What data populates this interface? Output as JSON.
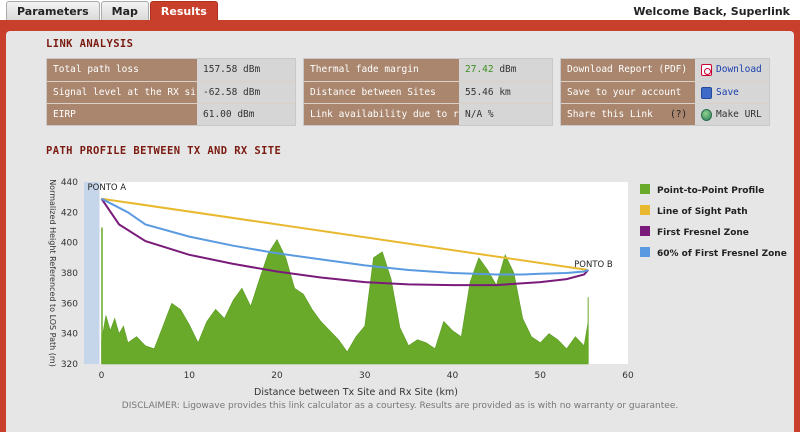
{
  "tabs": [
    {
      "label": "Parameters",
      "active": false
    },
    {
      "label": "Map",
      "active": false
    },
    {
      "label": "Results",
      "active": true
    }
  ],
  "welcome": "Welcome Back, Superlink",
  "link_analysis": {
    "title": "LINK ANALYSIS",
    "col1": [
      {
        "label": "Total path loss",
        "value": "157.58 dBm"
      },
      {
        "label": "Signal level at the RX site",
        "value": "-62.58 dBm"
      },
      {
        "label": "EIRP",
        "value": "61.00 dBm"
      }
    ],
    "col2": [
      {
        "label": "Thermal fade margin",
        "value_num": "27.42",
        "value_unit": " dBm"
      },
      {
        "label": "Distance between Sites",
        "value": "55.46 km"
      },
      {
        "label": "Link availability due to rain",
        "value": "N/A %"
      }
    ],
    "col3": [
      {
        "label": "Download Report (PDF)",
        "action": "Download",
        "icon": "pdf-icon"
      },
      {
        "label": "Save to your account",
        "action": "Save",
        "icon": "disk-icon"
      },
      {
        "label": "Share this Link",
        "help": "(?)",
        "action": "Make URL",
        "icon": "globe-icon"
      }
    ],
    "colors": {
      "label_bg": "#a9866d",
      "value_bg": "#d6d6d6",
      "green": "#3a8f1a",
      "link": "#1a3fae"
    }
  },
  "profile_title": "PATH PROFILE BETWEEN TX AND RX SITE",
  "chart_data": {
    "type": "area",
    "xlabel": "Distance between Tx Site and Rx Site (km)",
    "ylabel": "Normalized Height Referenced to LOS Path (m)",
    "xlim": [
      -2,
      60
    ],
    "ylim": [
      320,
      440
    ],
    "x_ticks": [
      0,
      10,
      20,
      30,
      40,
      50,
      60
    ],
    "y_ticks": [
      320,
      340,
      360,
      380,
      400,
      420,
      440
    ],
    "annotations": [
      {
        "text": "PONTO A",
        "x": 0,
        "y": 428
      },
      {
        "text": "PONTO B",
        "x": 55.46,
        "y": 382
      }
    ],
    "legend_position": "right",
    "series": [
      {
        "name": "Point-to-Point Profile",
        "color": "#6aaa2a",
        "kind": "area",
        "x": [
          0,
          0.5,
          1,
          1.5,
          2,
          2.5,
          3,
          4,
          5,
          6,
          7,
          8,
          9,
          10,
          11,
          12,
          13,
          14,
          15,
          16,
          17,
          18,
          19,
          20,
          21,
          22,
          23,
          24,
          25,
          26,
          27,
          28,
          29,
          30,
          31,
          32,
          33,
          34,
          35,
          36,
          37,
          38,
          39,
          40,
          41,
          42,
          43,
          44,
          45,
          46,
          47,
          48,
          49,
          50,
          51,
          52,
          53,
          54,
          55,
          55.46
        ],
        "y": [
          335,
          352,
          342,
          350,
          340,
          345,
          334,
          338,
          332,
          330,
          345,
          360,
          356,
          346,
          334,
          348,
          356,
          350,
          362,
          370,
          358,
          376,
          393,
          402,
          390,
          370,
          366,
          356,
          348,
          342,
          336,
          328,
          338,
          345,
          390,
          394,
          376,
          344,
          332,
          336,
          334,
          330,
          348,
          342,
          338,
          374,
          390,
          382,
          372,
          392,
          380,
          350,
          338,
          334,
          340,
          336,
          330,
          338,
          332,
          348
        ],
        "spikes": [
          {
            "x": 0.05,
            "y": 410
          }
        ]
      },
      {
        "name": "Line of Sight Path",
        "color": "#e8b82e",
        "kind": "line",
        "x": [
          0,
          55.46
        ],
        "y": [
          429,
          382
        ]
      },
      {
        "name": "First Fresnel Zone",
        "color": "#7a1a7a",
        "kind": "line",
        "x": [
          0,
          2,
          5,
          10,
          15,
          20,
          25,
          30,
          35,
          40,
          45,
          50,
          53,
          55,
          55.46
        ],
        "y": [
          429,
          412,
          401,
          392,
          386,
          381,
          377,
          374,
          372.5,
          372,
          372,
          374,
          376,
          379,
          382
        ]
      },
      {
        "name": "60% of First Fresnel Zone",
        "color": "#5a9ae0",
        "kind": "line",
        "x": [
          0,
          3,
          5,
          10,
          15,
          20,
          25,
          30,
          35,
          40,
          45,
          48,
          50,
          53,
          55,
          55.46
        ],
        "y": [
          429,
          420,
          412,
          404,
          398,
          393,
          389,
          385,
          382,
          380,
          379,
          379,
          379.5,
          380,
          381,
          382
        ]
      }
    ]
  },
  "disclaimer": "DISCLAIMER: Ligowave provides this link calculator as a courtesy.  Results are provided as is with no warranty or guarantee."
}
